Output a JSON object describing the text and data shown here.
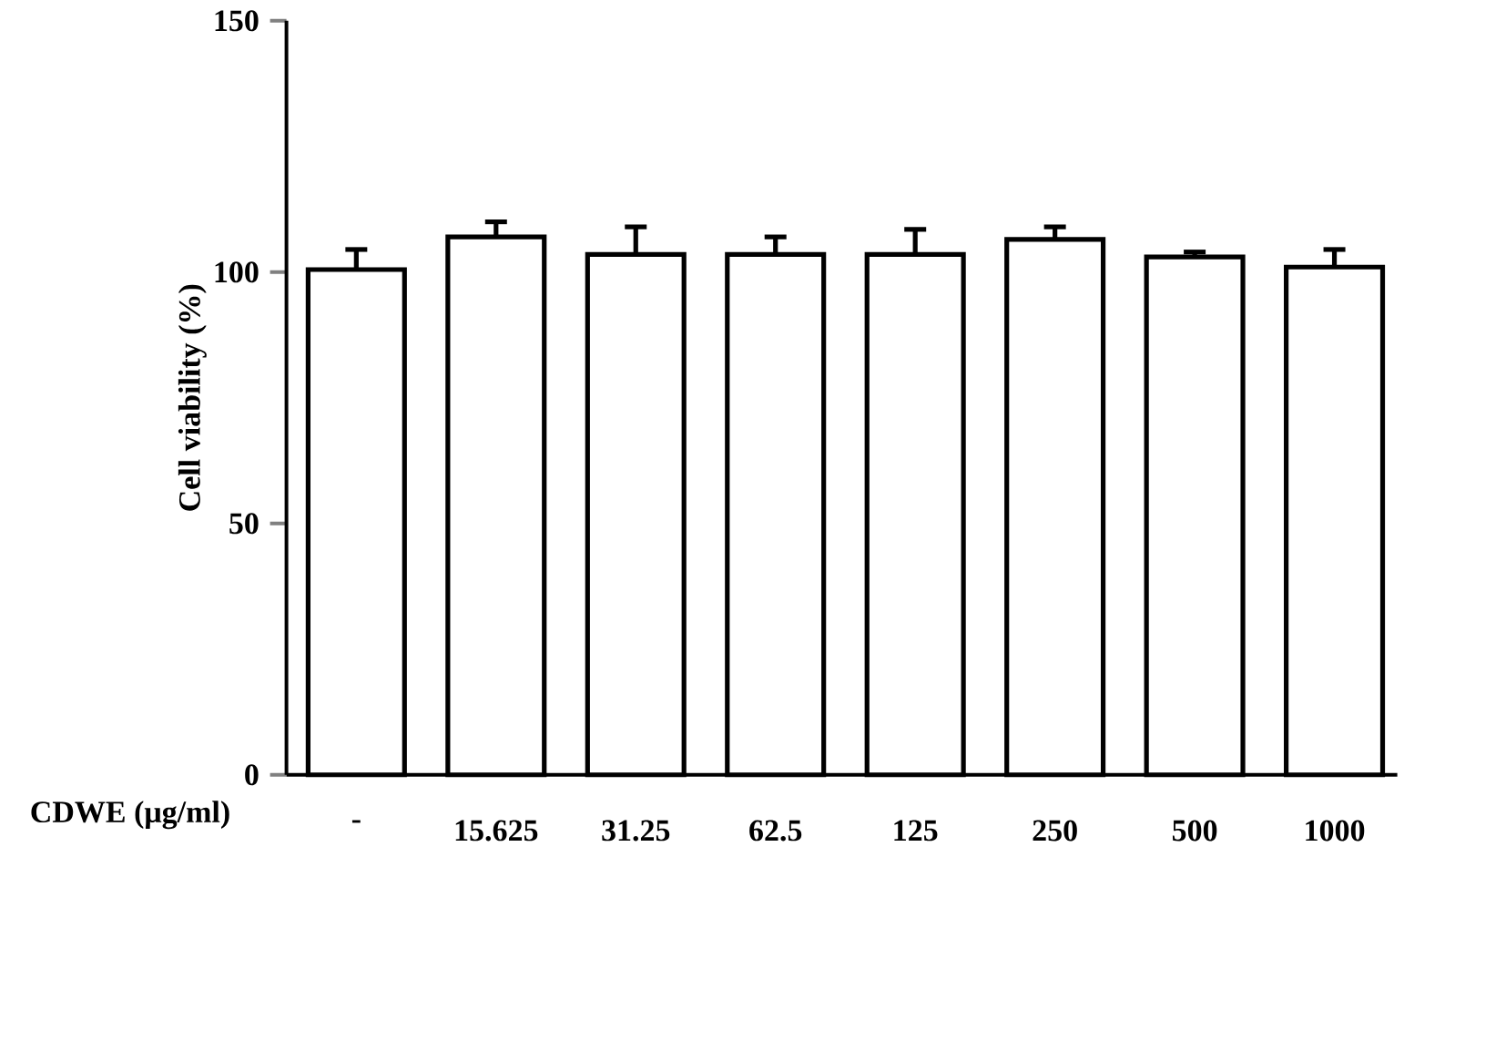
{
  "chart_data": {
    "type": "bar",
    "xlabel": "CDWE (μg/ml)",
    "ylabel": "Cell viability (%)",
    "categories": [
      "-",
      "15.625",
      "31.25",
      "62.5",
      "125",
      "250",
      "500",
      "1000"
    ],
    "values": [
      100.5,
      107,
      103.5,
      103.5,
      103.5,
      106.5,
      103,
      101
    ],
    "errors": [
      4,
      3,
      5.5,
      3.5,
      5,
      2.5,
      1,
      3.5
    ],
    "color": "#ffffff",
    "ylim": [
      0,
      150
    ],
    "yticks": [
      0,
      50,
      100,
      150
    ],
    "grid": false
  }
}
